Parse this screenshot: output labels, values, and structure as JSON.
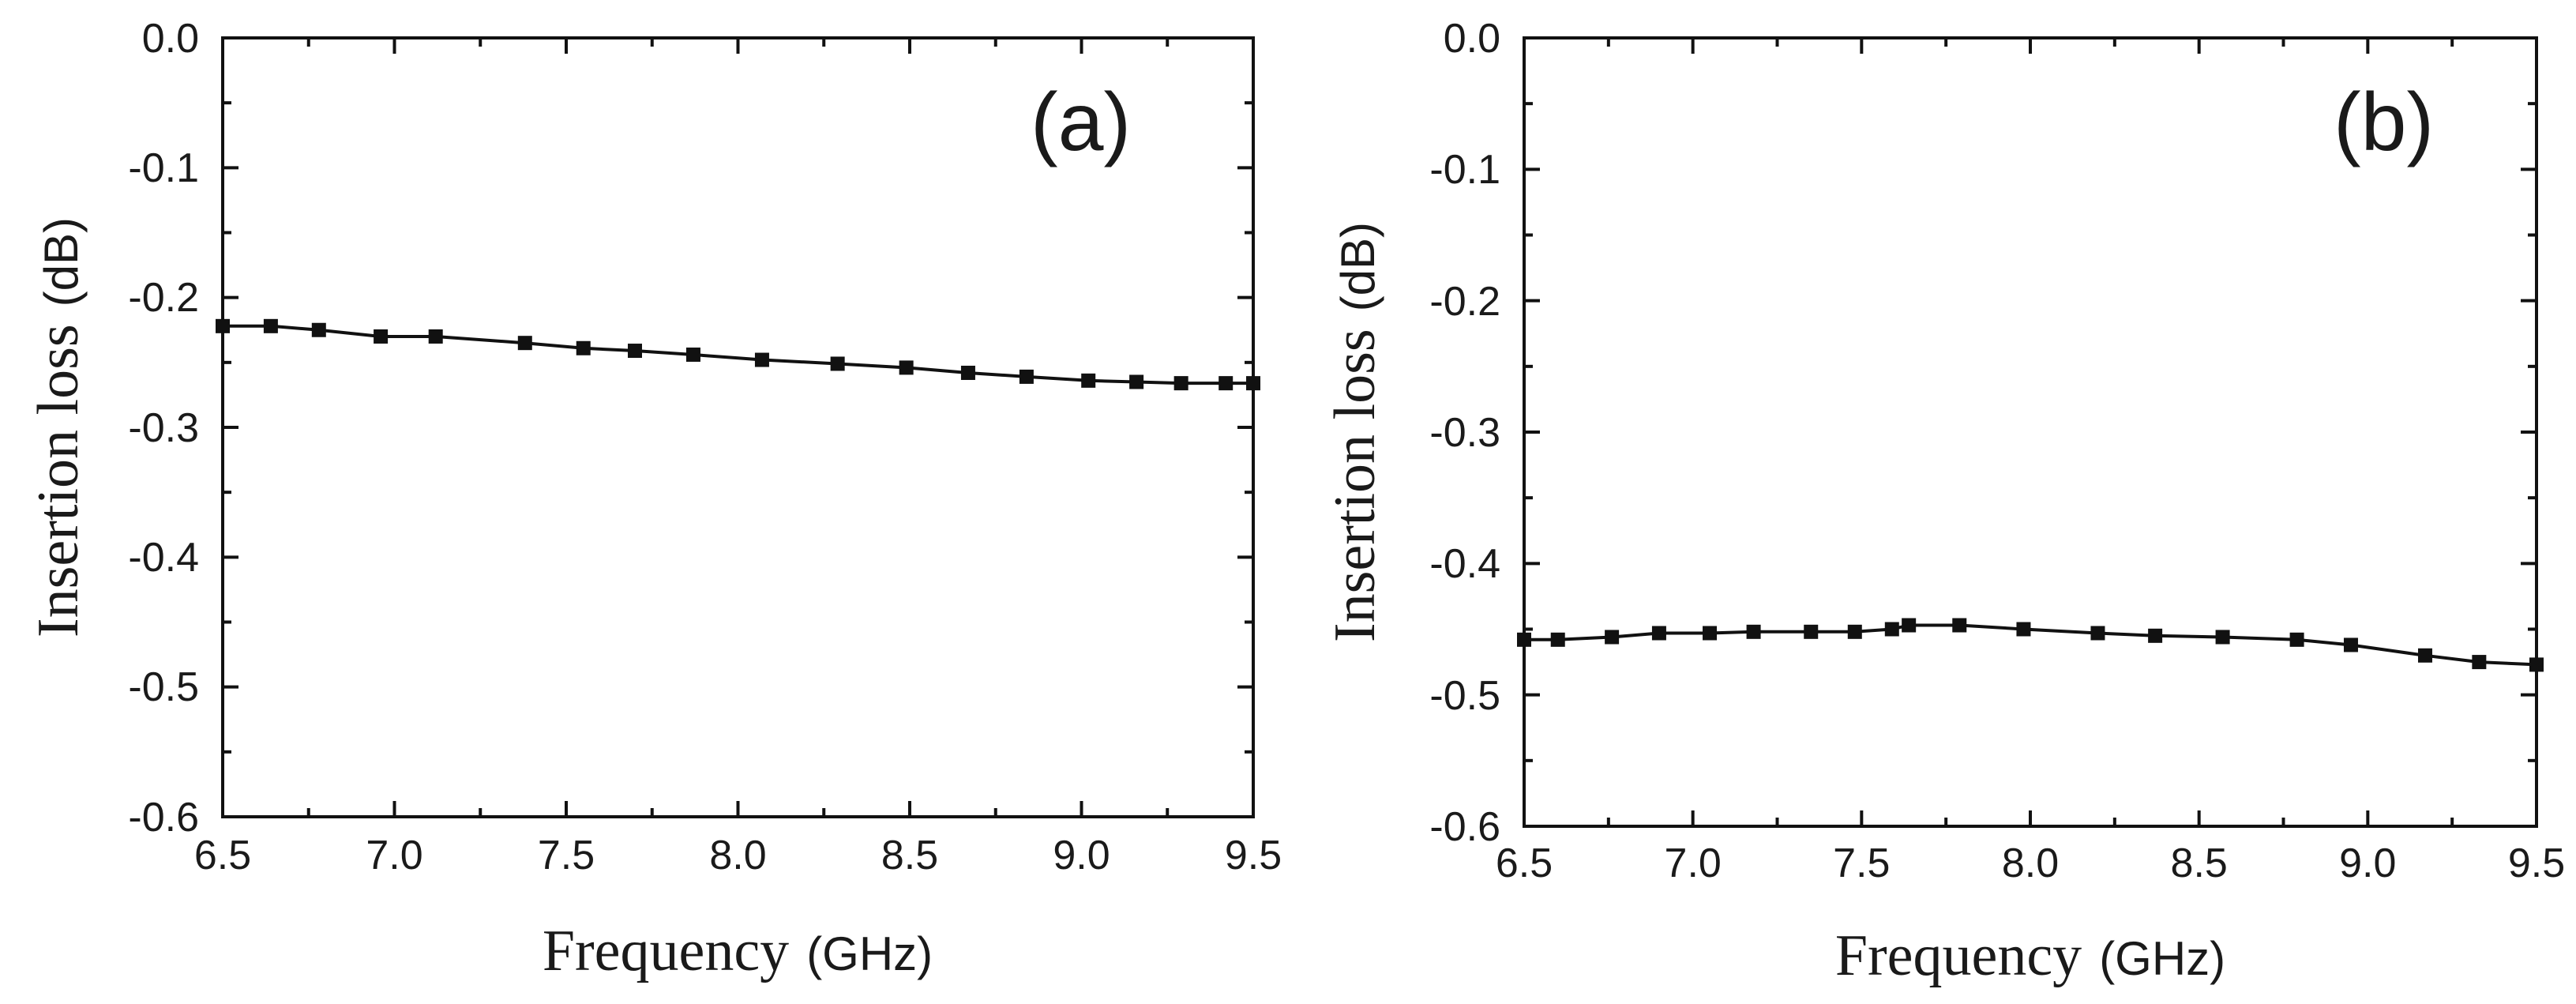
{
  "chart_data": [
    {
      "type": "line",
      "panel_label": "(a)",
      "xlabel": "Frequency",
      "xunit": "(GHz)",
      "ylabel": "Insertion loss",
      "yunit": "(dB)",
      "xlim": [
        6.5,
        9.5
      ],
      "ylim": [
        -0.6,
        0.0
      ],
      "xticks": [
        "6.5",
        "7.0",
        "7.5",
        "8.0",
        "8.5",
        "9.0",
        "9.5"
      ],
      "yticks": [
        "0.0",
        "-0.1",
        "-0.2",
        "-0.3",
        "-0.4",
        "-0.5",
        "-0.6"
      ],
      "grid": false,
      "marker": "square",
      "series": [
        {
          "name": "(a)",
          "x": [
            6.5,
            6.64,
            6.78,
            6.96,
            7.12,
            7.38,
            7.55,
            7.7,
            7.87,
            8.07,
            8.29,
            8.49,
            8.67,
            8.84,
            9.02,
            9.16,
            9.29,
            9.42,
            9.5
          ],
          "y": [
            -0.222,
            -0.222,
            -0.225,
            -0.23,
            -0.23,
            -0.235,
            -0.239,
            -0.241,
            -0.244,
            -0.248,
            -0.251,
            -0.254,
            -0.258,
            -0.261,
            -0.264,
            -0.265,
            -0.266,
            -0.266,
            -0.266
          ]
        }
      ]
    },
    {
      "type": "line",
      "panel_label": "(b)",
      "xlabel": "Frequency",
      "xunit": "(GHz)",
      "ylabel": "Insertion loss",
      "yunit": "(dB)",
      "xlim": [
        6.5,
        9.5
      ],
      "ylim": [
        -0.6,
        0.0
      ],
      "xticks": [
        "6.5",
        "7.0",
        "7.5",
        "8.0",
        "8.5",
        "9.0",
        "9.5"
      ],
      "yticks": [
        "0.0",
        "-0.1",
        "-0.2",
        "-0.3",
        "-0.4",
        "-0.5",
        "-0.6"
      ],
      "grid": false,
      "marker": "square",
      "series": [
        {
          "name": "(b)",
          "x": [
            6.5,
            6.6,
            6.76,
            6.9,
            7.05,
            7.18,
            7.35,
            7.48,
            7.59,
            7.64,
            7.79,
            7.98,
            8.2,
            8.37,
            8.57,
            8.79,
            8.95,
            9.17,
            9.33,
            9.5
          ],
          "y": [
            -0.458,
            -0.458,
            -0.456,
            -0.453,
            -0.453,
            -0.452,
            -0.452,
            -0.452,
            -0.45,
            -0.447,
            -0.447,
            -0.45,
            -0.453,
            -0.455,
            -0.456,
            -0.458,
            -0.462,
            -0.47,
            -0.475,
            -0.477
          ]
        }
      ]
    }
  ]
}
